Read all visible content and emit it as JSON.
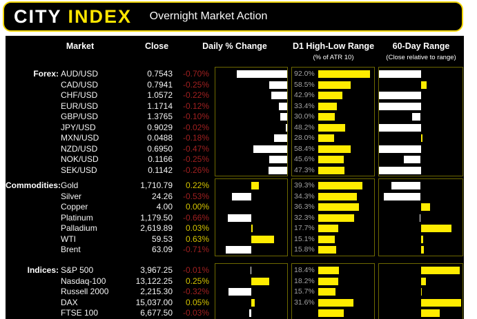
{
  "header": {
    "logo_city": "CITY",
    "logo_index": "INDEX",
    "title": "Overnight Market Action"
  },
  "columns": {
    "market": "Market",
    "close": "Close",
    "daily": "Daily % Change",
    "d1": "D1 High-Low Range",
    "d1_sub": "(% of ATR 10)",
    "range60": "60-Day Range",
    "range60_sub": "(Close relative to range)"
  },
  "colors": {
    "positive_text": "#d6c500",
    "negative_text": "#a02020",
    "bar_yellow": "#ffec00",
    "bar_white": "#ffffff",
    "logo_yellow": "#ffe600",
    "header_border": "#f2d600",
    "chart_box_border": "#6e6900",
    "background": "#000000"
  },
  "chart_data": [
    {
      "type": "bar",
      "section": "Forex:",
      "categories": [
        "AUD/USD",
        "CAD/USD",
        "CHF/USD",
        "EUR/USD",
        "GBP/USD",
        "JPY/USD",
        "MXN/USD",
        "NZD/USD",
        "NOK/USD",
        "SEK/USD"
      ],
      "close": [
        "0.7543",
        "0.7941",
        "1.0572",
        "1.1714",
        "1.3765",
        "0.9029",
        "0.0488",
        "0.6950",
        "0.1166",
        "0.1142"
      ],
      "daily_pct_change": [
        -0.7,
        -0.25,
        -0.22,
        -0.12,
        -0.1,
        -0.02,
        -0.18,
        -0.47,
        -0.25,
        -0.26
      ],
      "daily_labels": [
        "-0.70%",
        "-0.25%",
        "-0.22%",
        "-0.12%",
        "-0.10%",
        "-0.02%",
        "-0.18%",
        "-0.47%",
        "-0.25%",
        "-0.26%"
      ],
      "daily_axis": {
        "min": -1,
        "max": 0
      },
      "d1_range_pct_of_atr10": [
        92.0,
        58.5,
        42.9,
        33.4,
        30.0,
        48.2,
        28.0,
        58.4,
        45.6,
        47.3
      ],
      "d1_labels": [
        "92.0%",
        "58.5%",
        "42.9%",
        "33.4%",
        "30.0%",
        "48.2%",
        "28.0%",
        "58.4%",
        "45.6%",
        "47.3%"
      ],
      "d1_axis_max": 100,
      "close_rel_60day_range_pct": [
        0,
        57,
        0,
        0,
        40,
        0,
        52,
        0,
        30,
        0
      ]
    },
    {
      "type": "bar",
      "section": "Commodities:",
      "categories": [
        "Gold",
        "Silver",
        "Copper",
        "Platinum",
        "Palladium",
        "WTI",
        "Brent"
      ],
      "close": [
        "1,710.79",
        "24.26",
        "4.00",
        "1,179.50",
        "2,619.89",
        "59.53",
        "63.09"
      ],
      "daily_pct_change": [
        0.22,
        -0.53,
        0.0,
        -0.66,
        0.03,
        0.63,
        -0.71
      ],
      "daily_labels": [
        "0.22%",
        "-0.53%",
        "0.00%",
        "-0.66%",
        "0.03%",
        "0.63%",
        "-0.71%"
      ],
      "daily_axis": {
        "min": -1,
        "max": 1
      },
      "d1_range_pct_of_atr10": [
        39.3,
        34.3,
        36.3,
        32.3,
        17.7,
        15.1,
        15.8
      ],
      "d1_labels": [
        "39.3%",
        "34.3%",
        "36.3%",
        "32.3%",
        "17.7%",
        "15.1%",
        "15.8%"
      ],
      "d1_axis_max": 50,
      "close_rel_60day_range_pct": [
        15,
        6,
        61,
        49,
        87,
        53,
        54
      ]
    },
    {
      "type": "bar",
      "section": "Indices:",
      "categories": [
        "S&P 500",
        "Nasdaq-100",
        "Russell 2000",
        "DAX",
        "FTSE 100"
      ],
      "close": [
        "3,967.25",
        "13,122.25",
        "2,215.30",
        "15,037.00",
        "6,677.50"
      ],
      "daily_pct_change": [
        -0.01,
        0.25,
        -0.32,
        0.05,
        -0.03
      ],
      "daily_labels": [
        "-0.01%",
        "0.25%",
        "-0.32%",
        "0.05%",
        "-0.03%"
      ],
      "daily_axis": {
        "min": -0.5,
        "max": 0.5
      },
      "d1_range_pct_of_atr10": [
        18.4,
        18.2,
        15.7,
        31.6,
        23.0
      ],
      "d1_labels": [
        "18.4%",
        "18.2%",
        "15.7%",
        "31.6%",
        ""
      ],
      "d1_axis_max": 50,
      "close_rel_60day_range_pct": [
        97,
        56,
        51,
        98,
        73
      ]
    }
  ]
}
